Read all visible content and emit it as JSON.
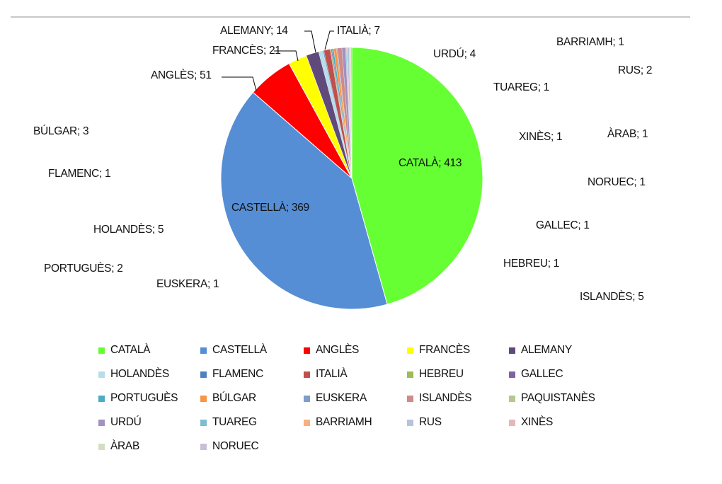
{
  "chart_data": {
    "type": "pie",
    "title": "",
    "start_angle": "top, clockwise",
    "legend_position": "bottom",
    "categories": [
      "CATALÀ",
      "CASTELLÀ",
      "ANGLÈS",
      "FRANCÈS",
      "ALEMANY",
      "HOLANDÈS",
      "FLAMENC",
      "ITALIÀ",
      "HEBREU",
      "GALLEC",
      "PORTUGUÈS",
      "BÚLGAR",
      "EUSKERA",
      "ISLANDÈS",
      "PAQUISTANÈS",
      "URDÚ",
      "TUAREG",
      "BARRIAMH",
      "RUS",
      "XINÈS",
      "ÀRAB",
      "NORUEC"
    ],
    "values": [
      413,
      369,
      51,
      21,
      14,
      5,
      1,
      7,
      1,
      1,
      2,
      3,
      1,
      5,
      0,
      4,
      1,
      1,
      2,
      1,
      1,
      1
    ],
    "colors": [
      "#66ff33",
      "#558ed5",
      "#ff0000",
      "#ffff00",
      "#604a7b",
      "#b7dde8",
      "#4f81bd",
      "#c0504d",
      "#9bbb59",
      "#8064a2",
      "#4bacc6",
      "#f79646",
      "#7f9ccb",
      "#d08a88",
      "#b3c98f",
      "#a391bf",
      "#7dbfd0",
      "#f9b07f",
      "#b6c2dd",
      "#e3b9b8",
      "#d1dfc0",
      "#c9bfd7"
    ],
    "data_labels": [
      "CATALÀ; 413",
      "CASTELLÀ; 369",
      "ANGLÈS; 51",
      "FRANCÈS; 21",
      "ALEMANY; 14",
      "HOLANDÈS; 5",
      "FLAMENC; 1",
      "ITALIÀ; 7",
      "HEBREU; 1",
      "GALLEC; 1",
      "PORTUGUÈS; 2",
      "BÚLGAR; 3",
      "EUSKERA; 1",
      "ISLANDÈS; 5",
      "",
      "URDÚ; 4",
      "TUAREG; 1",
      "BARRIAMH; 1",
      "RUS; 2",
      "XINÈS; 1",
      "ÀRAB; 1",
      "NORUEC; 1"
    ]
  }
}
